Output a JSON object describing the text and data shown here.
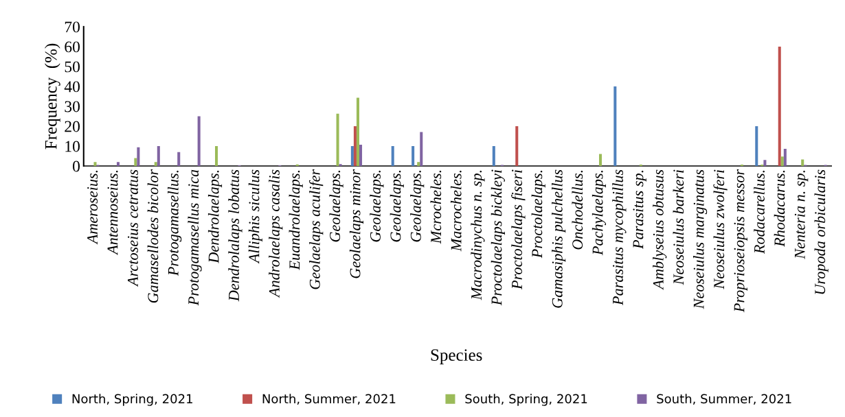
{
  "chart_data": {
    "type": "bar",
    "xlabel": "Species",
    "ylabel": "Frequency  (%)",
    "categories": [
      "Ameroseius.",
      "Antennoseius.",
      "Arctoseius cetratus",
      "Gamasellodes bicolor",
      "Protogamasellus.",
      "Protogamasellus mica",
      "Dendrolaelaps.",
      "Dendrolalaps lobatus",
      "Alliphis siculus",
      "Androlaelaps casalis",
      "Euandrolaelaps.",
      "Geolaelaps aculifer",
      "Geolaelaps.",
      "Geolaelaps minor",
      "Geolaelaps.",
      "Geolaelaps.",
      "Geolaelaps.",
      "Mcrocheles.",
      "Macrocheles.",
      "Macrodinychus n. sp.",
      "Proctolaelaps bickleyi",
      "Proctolaelaps fiseri",
      "Proctolaelaps.",
      "Gamasiphis pulchellus",
      "Onchodellus.",
      "Pachylaelaps.",
      "Parasitus mycophillus",
      "Parasitus sp.",
      "Amblyseius obtusus",
      "Neoseiulus barkeri",
      "Neoseiulus marginatus",
      "Neoseiulus zwolferi",
      "Proprioseiopsis messor",
      "Rodacarellus.",
      "Rhodacarus.",
      "Nenteria n. sp.",
      "Uropoda orbicularis"
    ],
    "series": [
      {
        "name": "North, Spring, 2021",
        "color": "#4f81bd",
        "values": [
          0,
          0,
          0,
          0,
          0,
          0,
          0,
          0,
          0,
          0,
          0,
          0,
          0,
          10,
          0,
          10,
          10,
          0,
          0,
          0,
          10,
          0,
          0,
          0,
          0,
          0,
          40,
          0,
          0,
          0,
          0,
          0,
          0,
          20,
          0,
          0,
          0
        ]
      },
      {
        "name": "North, Summer, 2021",
        "color": "#c0504d",
        "values": [
          0,
          0,
          0,
          0,
          0,
          0,
          0,
          0,
          0,
          0,
          0,
          0,
          0,
          20,
          0,
          0,
          0,
          0,
          0,
          0,
          0,
          20,
          0,
          0,
          0,
          0,
          0,
          0,
          0,
          0,
          0,
          0,
          0,
          0,
          60,
          0,
          0
        ]
      },
      {
        "name": "South, Spring, 2021",
        "color": "#9bbb59",
        "values": [
          2,
          0,
          4,
          2,
          0,
          0,
          10,
          0,
          0,
          0,
          0.8,
          0,
          26.3,
          34.3,
          0,
          0,
          2,
          0,
          0,
          0,
          0,
          0,
          0,
          0,
          0,
          6,
          0,
          0.7,
          0,
          0,
          0,
          0,
          0.7,
          0.7,
          4.7,
          3.3,
          0
        ]
      },
      {
        "name": "South, Summer, 2021",
        "color": "#8064a2",
        "values": [
          0.5,
          2,
          9.4,
          10,
          7,
          25,
          0,
          0.3,
          0,
          0.3,
          0,
          0,
          0.9,
          10.7,
          0,
          0,
          17.1,
          0,
          0,
          0,
          0.5,
          0,
          0,
          0,
          0,
          0,
          0,
          0,
          0,
          0,
          0,
          0,
          0,
          3,
          8.6,
          0.5,
          0.5
        ]
      }
    ],
    "ylim": [
      0,
      70
    ],
    "yticks": [
      0,
      10,
      20,
      30,
      40,
      50,
      60,
      70
    ],
    "grid": false,
    "legend": "bottom"
  }
}
